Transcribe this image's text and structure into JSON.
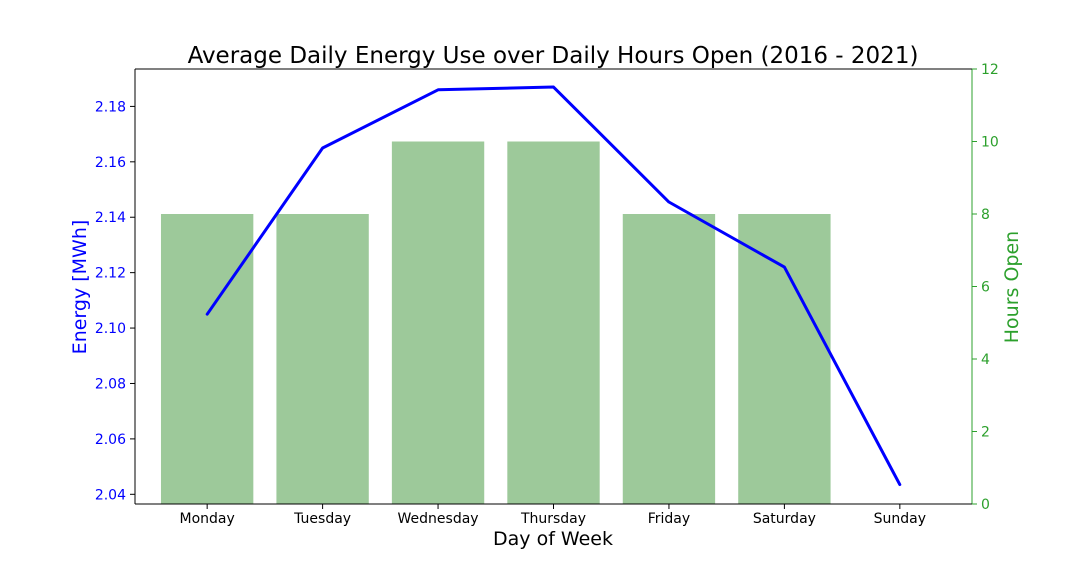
{
  "chart_data": {
    "type": "bar",
    "title": "Average Daily Energy Use over Daily Hours Open (2016 - 2021)",
    "xlabel": "Day of Week",
    "categories": [
      "Monday",
      "Tuesday",
      "Wednesday",
      "Thursday",
      "Friday",
      "Saturday",
      "Sunday"
    ],
    "left_axis": {
      "label": "Energy [MWh]",
      "color": "#0000ff",
      "ylim": [
        2.0365,
        2.1935
      ],
      "ticks": [
        "2.04",
        "2.06",
        "2.08",
        "2.10",
        "2.12",
        "2.14",
        "2.16",
        "2.18"
      ],
      "tick_values": [
        2.04,
        2.06,
        2.08,
        2.1,
        2.12,
        2.14,
        2.16,
        2.18
      ]
    },
    "right_axis": {
      "label": "Hours Open",
      "color": "#2ca02c",
      "ylim": [
        0,
        12
      ],
      "ticks": [
        "0",
        "2",
        "4",
        "6",
        "8",
        "10",
        "12"
      ],
      "tick_values": [
        0,
        2,
        4,
        6,
        8,
        10,
        12
      ]
    },
    "series": [
      {
        "type": "bar",
        "axis": "right",
        "color": "#9dc99a",
        "values": [
          8,
          8,
          10,
          10,
          8,
          8,
          0
        ]
      },
      {
        "type": "line",
        "axis": "left",
        "color": "#0000ff",
        "values": [
          2.105,
          2.165,
          2.186,
          2.187,
          2.1455,
          2.122,
          2.0435
        ]
      }
    ],
    "grid": false,
    "legend": "none"
  }
}
